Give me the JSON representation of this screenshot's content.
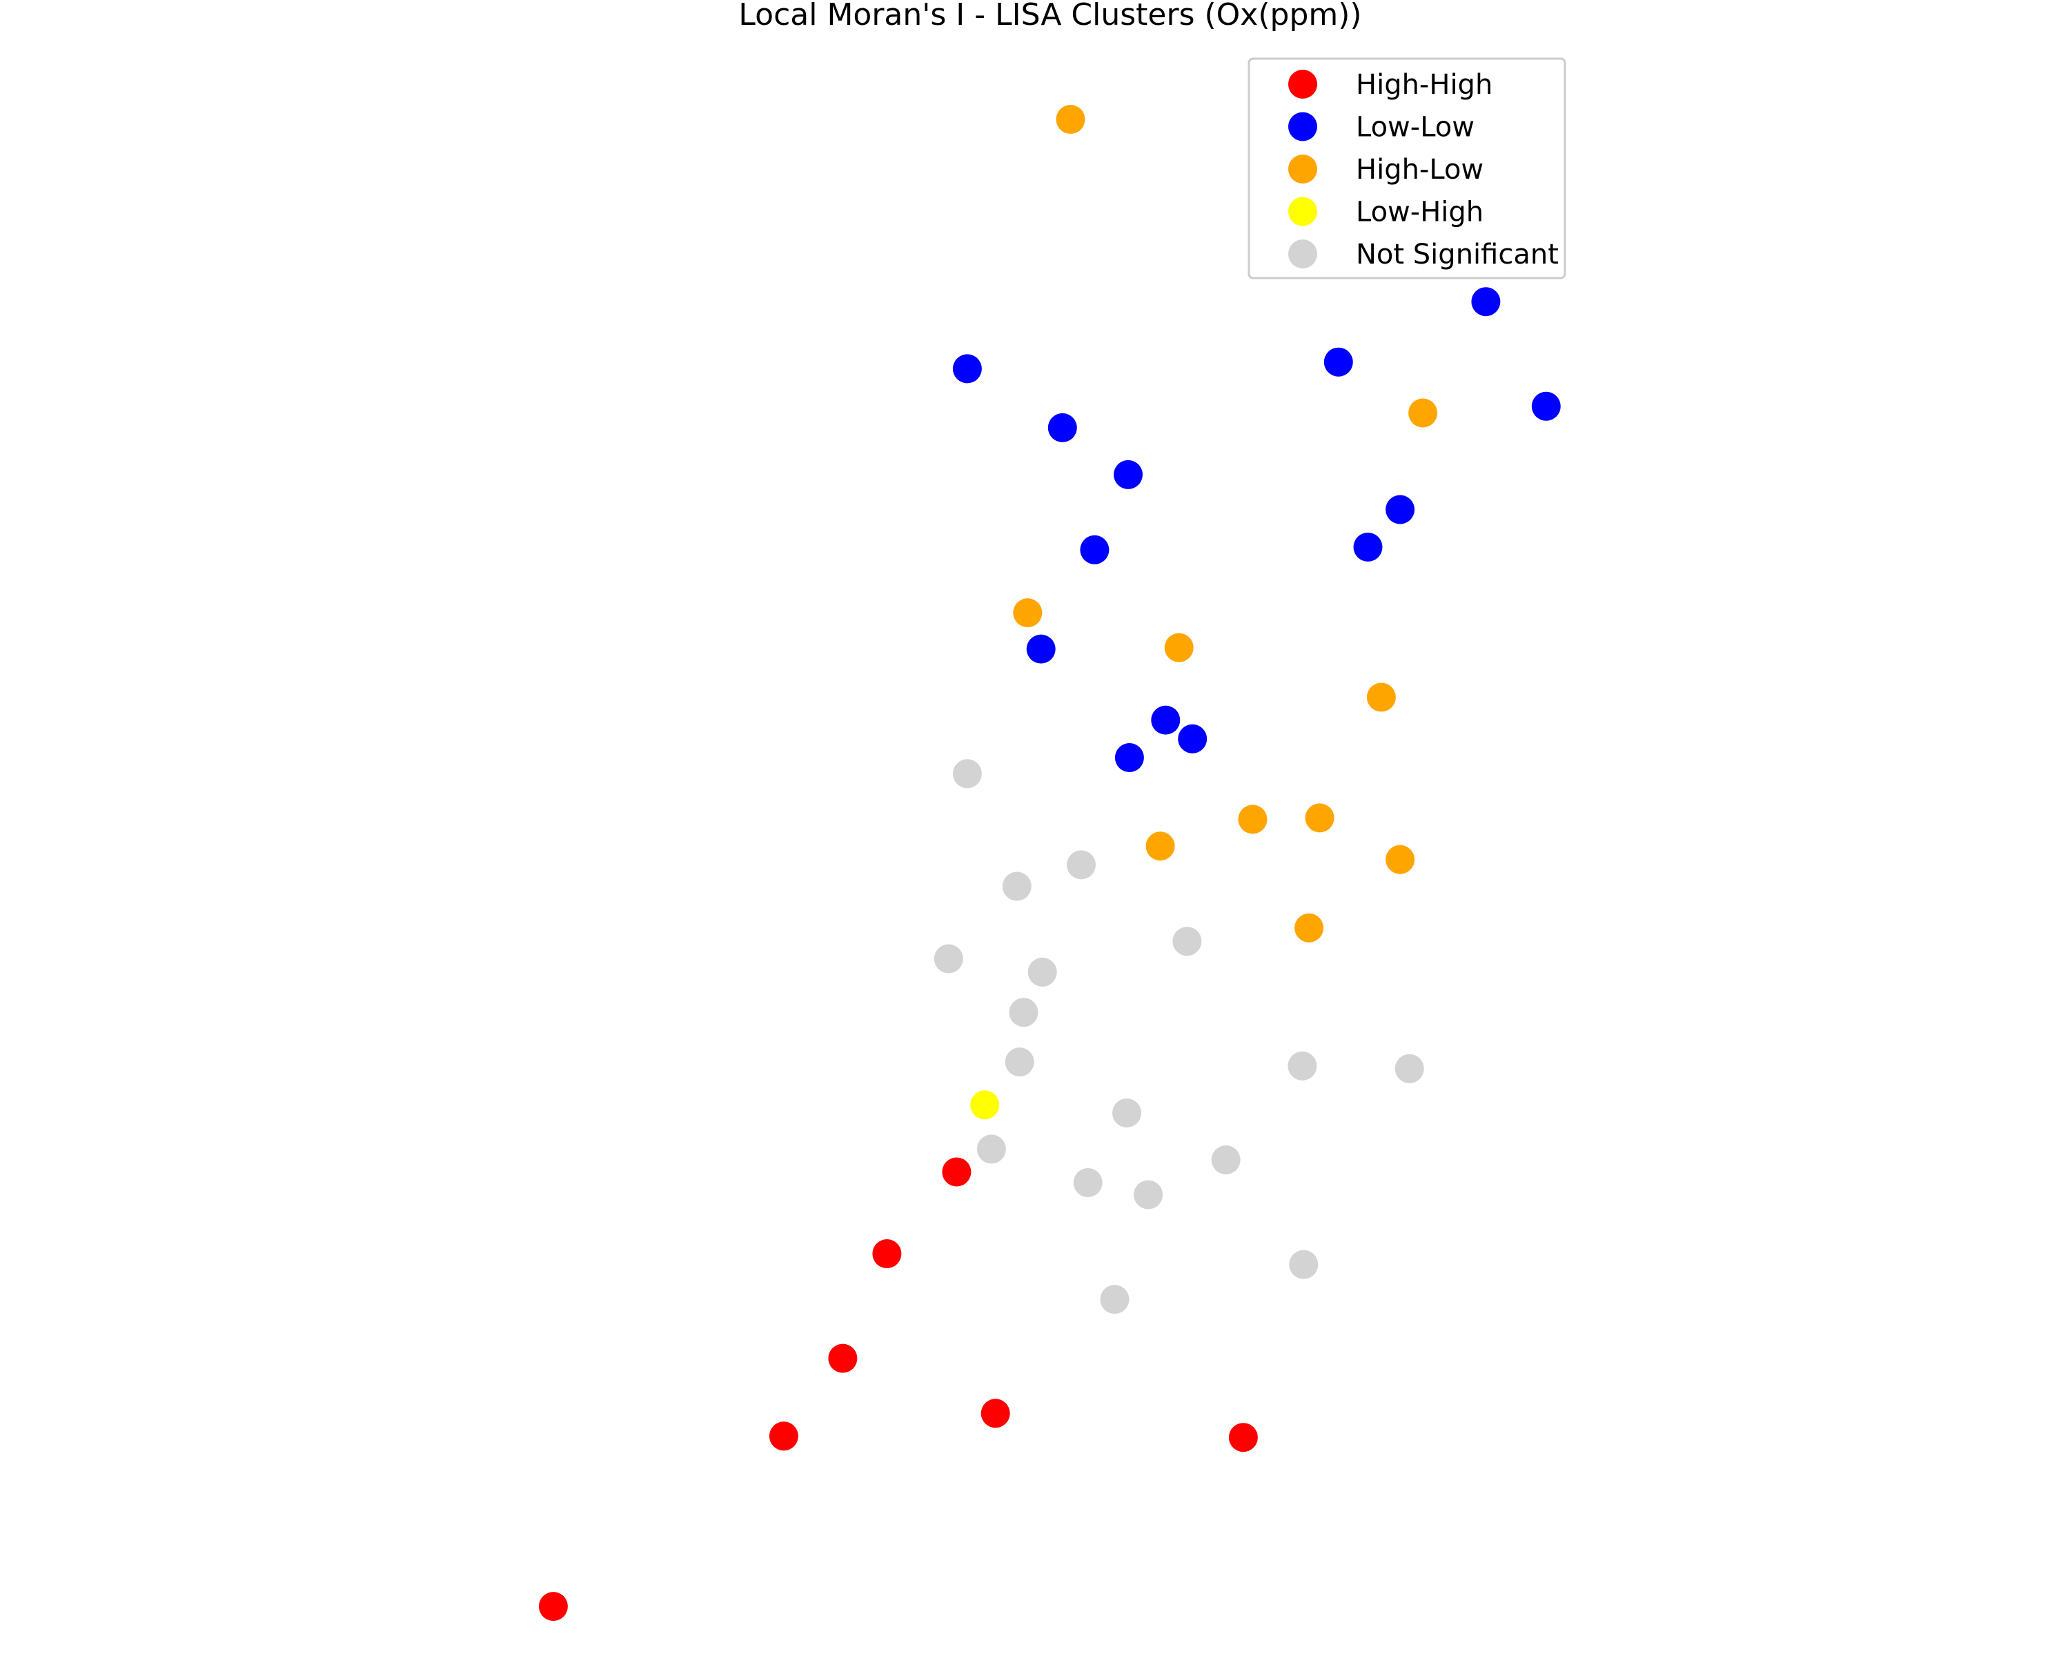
{
  "chart_data": {
    "type": "scatter",
    "title": "Local Moran's I - LISA Clusters (Ox(ppm))",
    "xlabel": "",
    "ylabel": "",
    "axes_visible": false,
    "grid": false,
    "legend_position": "top-right",
    "xlim": [
      0,
      1545
    ],
    "ylim": [
      1235,
      0
    ],
    "series": [
      {
        "name": "High-High",
        "color": "#ff0000",
        "points": [
          {
            "x": 714,
            "y": 874
          },
          {
            "x": 662,
            "y": 935
          },
          {
            "x": 629,
            "y": 1013
          },
          {
            "x": 743,
            "y": 1054
          },
          {
            "x": 585,
            "y": 1071
          },
          {
            "x": 928,
            "y": 1072
          },
          {
            "x": 413,
            "y": 1198
          }
        ]
      },
      {
        "name": "Low-Low",
        "color": "#0000ff",
        "points": [
          {
            "x": 1109,
            "y": 225
          },
          {
            "x": 722,
            "y": 275
          },
          {
            "x": 999,
            "y": 270
          },
          {
            "x": 1154,
            "y": 303
          },
          {
            "x": 793,
            "y": 319
          },
          {
            "x": 842,
            "y": 354
          },
          {
            "x": 1045,
            "y": 380
          },
          {
            "x": 817,
            "y": 410
          },
          {
            "x": 1021,
            "y": 408
          },
          {
            "x": 777,
            "y": 484
          },
          {
            "x": 870,
            "y": 537
          },
          {
            "x": 890,
            "y": 551
          },
          {
            "x": 843,
            "y": 565
          }
        ]
      },
      {
        "name": "High-Low",
        "color": "#ffa500",
        "points": [
          {
            "x": 799,
            "y": 89
          },
          {
            "x": 1062,
            "y": 308
          },
          {
            "x": 767,
            "y": 457
          },
          {
            "x": 880,
            "y": 483
          },
          {
            "x": 1031,
            "y": 520
          },
          {
            "x": 935,
            "y": 611
          },
          {
            "x": 985,
            "y": 610
          },
          {
            "x": 866,
            "y": 631
          },
          {
            "x": 1045,
            "y": 641
          },
          {
            "x": 977,
            "y": 692
          }
        ]
      },
      {
        "name": "Low-High",
        "color": "#ffff00",
        "points": [
          {
            "x": 735,
            "y": 824
          }
        ]
      },
      {
        "name": "Not Significant",
        "color": "#d3d3d3",
        "points": [
          {
            "x": 722,
            "y": 577
          },
          {
            "x": 807,
            "y": 645
          },
          {
            "x": 759,
            "y": 661
          },
          {
            "x": 886,
            "y": 702
          },
          {
            "x": 708,
            "y": 715
          },
          {
            "x": 778,
            "y": 725
          },
          {
            "x": 764,
            "y": 755
          },
          {
            "x": 761,
            "y": 792
          },
          {
            "x": 972,
            "y": 795
          },
          {
            "x": 1052,
            "y": 797
          },
          {
            "x": 841,
            "y": 830
          },
          {
            "x": 740,
            "y": 857
          },
          {
            "x": 915,
            "y": 865
          },
          {
            "x": 812,
            "y": 882
          },
          {
            "x": 857,
            "y": 891
          },
          {
            "x": 973,
            "y": 943
          },
          {
            "x": 832,
            "y": 969
          }
        ]
      }
    ]
  }
}
